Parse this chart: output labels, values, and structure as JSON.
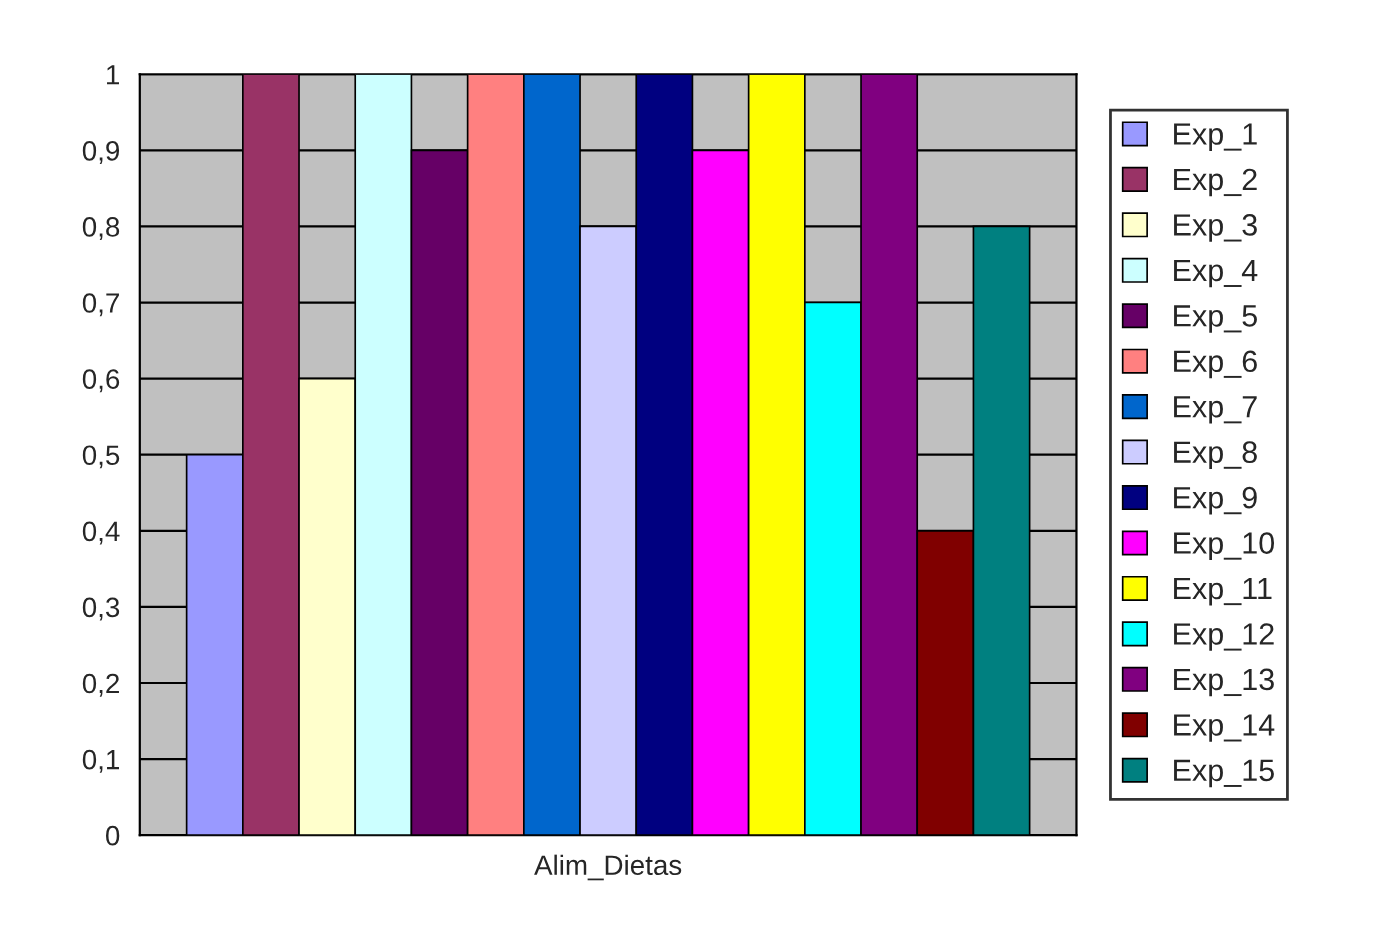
{
  "chart_data": {
    "type": "bar",
    "categories": [
      "Alim_Dietas"
    ],
    "series": [
      {
        "name": "Exp_1",
        "color": "#9999ff",
        "values": [
          0.5
        ]
      },
      {
        "name": "Exp_2",
        "color": "#993366",
        "values": [
          1
        ]
      },
      {
        "name": "Exp_3",
        "color": "#ffffcc",
        "values": [
          0.6
        ]
      },
      {
        "name": "Exp_4",
        "color": "#ccffff",
        "values": [
          1
        ]
      },
      {
        "name": "Exp_5",
        "color": "#660066",
        "values": [
          0.9
        ]
      },
      {
        "name": "Exp_6",
        "color": "#ff8080",
        "values": [
          1
        ]
      },
      {
        "name": "Exp_7",
        "color": "#0066cc",
        "values": [
          1
        ]
      },
      {
        "name": "Exp_8",
        "color": "#ccccff",
        "values": [
          0.8
        ]
      },
      {
        "name": "Exp_9",
        "color": "#000080",
        "values": [
          1
        ]
      },
      {
        "name": "Exp_10",
        "color": "#ff00ff",
        "values": [
          0.9
        ]
      },
      {
        "name": "Exp_11",
        "color": "#ffff00",
        "values": [
          1
        ]
      },
      {
        "name": "Exp_12",
        "color": "#00ffff",
        "values": [
          0.7
        ]
      },
      {
        "name": "Exp_13",
        "color": "#800080",
        "values": [
          1
        ]
      },
      {
        "name": "Exp_14",
        "color": "#800000",
        "values": [
          0.4
        ]
      },
      {
        "name": "Exp_15",
        "color": "#008080",
        "values": [
          0.8
        ]
      }
    ],
    "ylim": [
      0,
      1
    ],
    "yticks": [
      0,
      {
        "value": 0.1,
        "label": "0,1"
      },
      {
        "value": 0.2,
        "label": "0,2"
      },
      {
        "value": 0.3,
        "label": "0,3"
      },
      {
        "value": 0.4,
        "label": "0,4"
      },
      {
        "value": 0.5,
        "label": "0,5"
      },
      {
        "value": 0.6,
        "label": "0,6"
      },
      {
        "value": 0.7,
        "label": "0,7"
      },
      {
        "value": 0.8,
        "label": "0,8"
      },
      {
        "value": 0.9,
        "label": "0,9"
      },
      1
    ],
    "grid": "y",
    "legend": "right"
  }
}
